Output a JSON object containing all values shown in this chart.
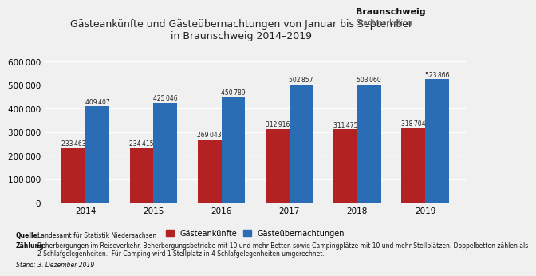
{
  "years": [
    "2014",
    "2015",
    "2016",
    "2017",
    "2018",
    "2019"
  ],
  "gaesteankunfte": [
    233463,
    234415,
    269043,
    312916,
    311475,
    318704
  ],
  "gaesteuebernachtungen": [
    409407,
    425046,
    450789,
    502857,
    503060,
    523866
  ],
  "color_ankuenfte": "#b22222",
  "color_uebernachtungen": "#2a6db5",
  "title_line1": "Gästeankünfte und Gästeübernachtungen von Januar bis September",
  "title_line2": "in Braunschweig 2014–2019",
  "legend_label1": "Gästeankünfte",
  "legend_label2": "Gästeübernachtungen",
  "ylabel_ticks": [
    0,
    100000,
    200000,
    300000,
    400000,
    500000,
    600000
  ],
  "bg_color": "#f0f0f0",
  "plot_bg": "#f0f0f0",
  "bar_width": 0.35,
  "ylim_max": 640000,
  "source_bold": "Quelle:",
  "source_text": " Landesamt für Statistik Niedersachsen",
  "zaehlung_bold": "Zählung:",
  "zaehlung_text": " Beherbergungen im Reiseverkehr. Beherbergungsbetriebe mit 10 und mehr Betten sowie Campingplätze mit 10 und mehr Stellplätzen. Doppelbetten zählen als\n2 Schlafgelegenheiten.  Für Camping wird 1 Stellplatz in 4 Schlafgelegenheiten umgerechnet.",
  "stand_text": "Stand: 3. Dezember 2019",
  "logo_bold": "Braunschweig",
  "logo_sub": "Stadtmarketing",
  "font_size_title": 9,
  "font_size_bar_label": 5.5,
  "font_size_axis": 7.5,
  "font_size_legend": 7,
  "font_size_footer": 5.5
}
